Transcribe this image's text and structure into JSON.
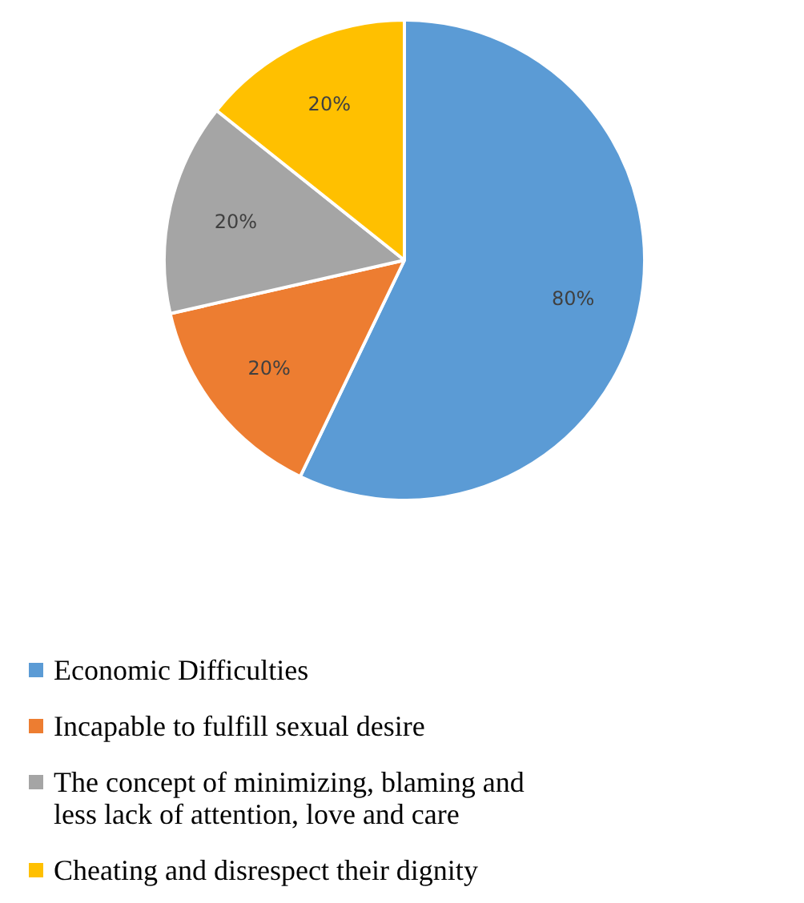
{
  "chart_data": {
    "type": "pie",
    "categories": [
      "Economic Difficulties",
      "Incapable to fulfill sexual desire",
      "The concept of minimizing, blaming and less lack of attention, love and care",
      "Cheating and disrespect their dignity"
    ],
    "values": [
      80,
      20,
      20,
      20
    ],
    "colors": [
      "#5b9bd5",
      "#ed7d31",
      "#a5a5a5",
      "#ffc000"
    ],
    "value_labels": [
      "80%",
      "20%",
      "20%",
      "20%"
    ],
    "legend": "bottom"
  }
}
